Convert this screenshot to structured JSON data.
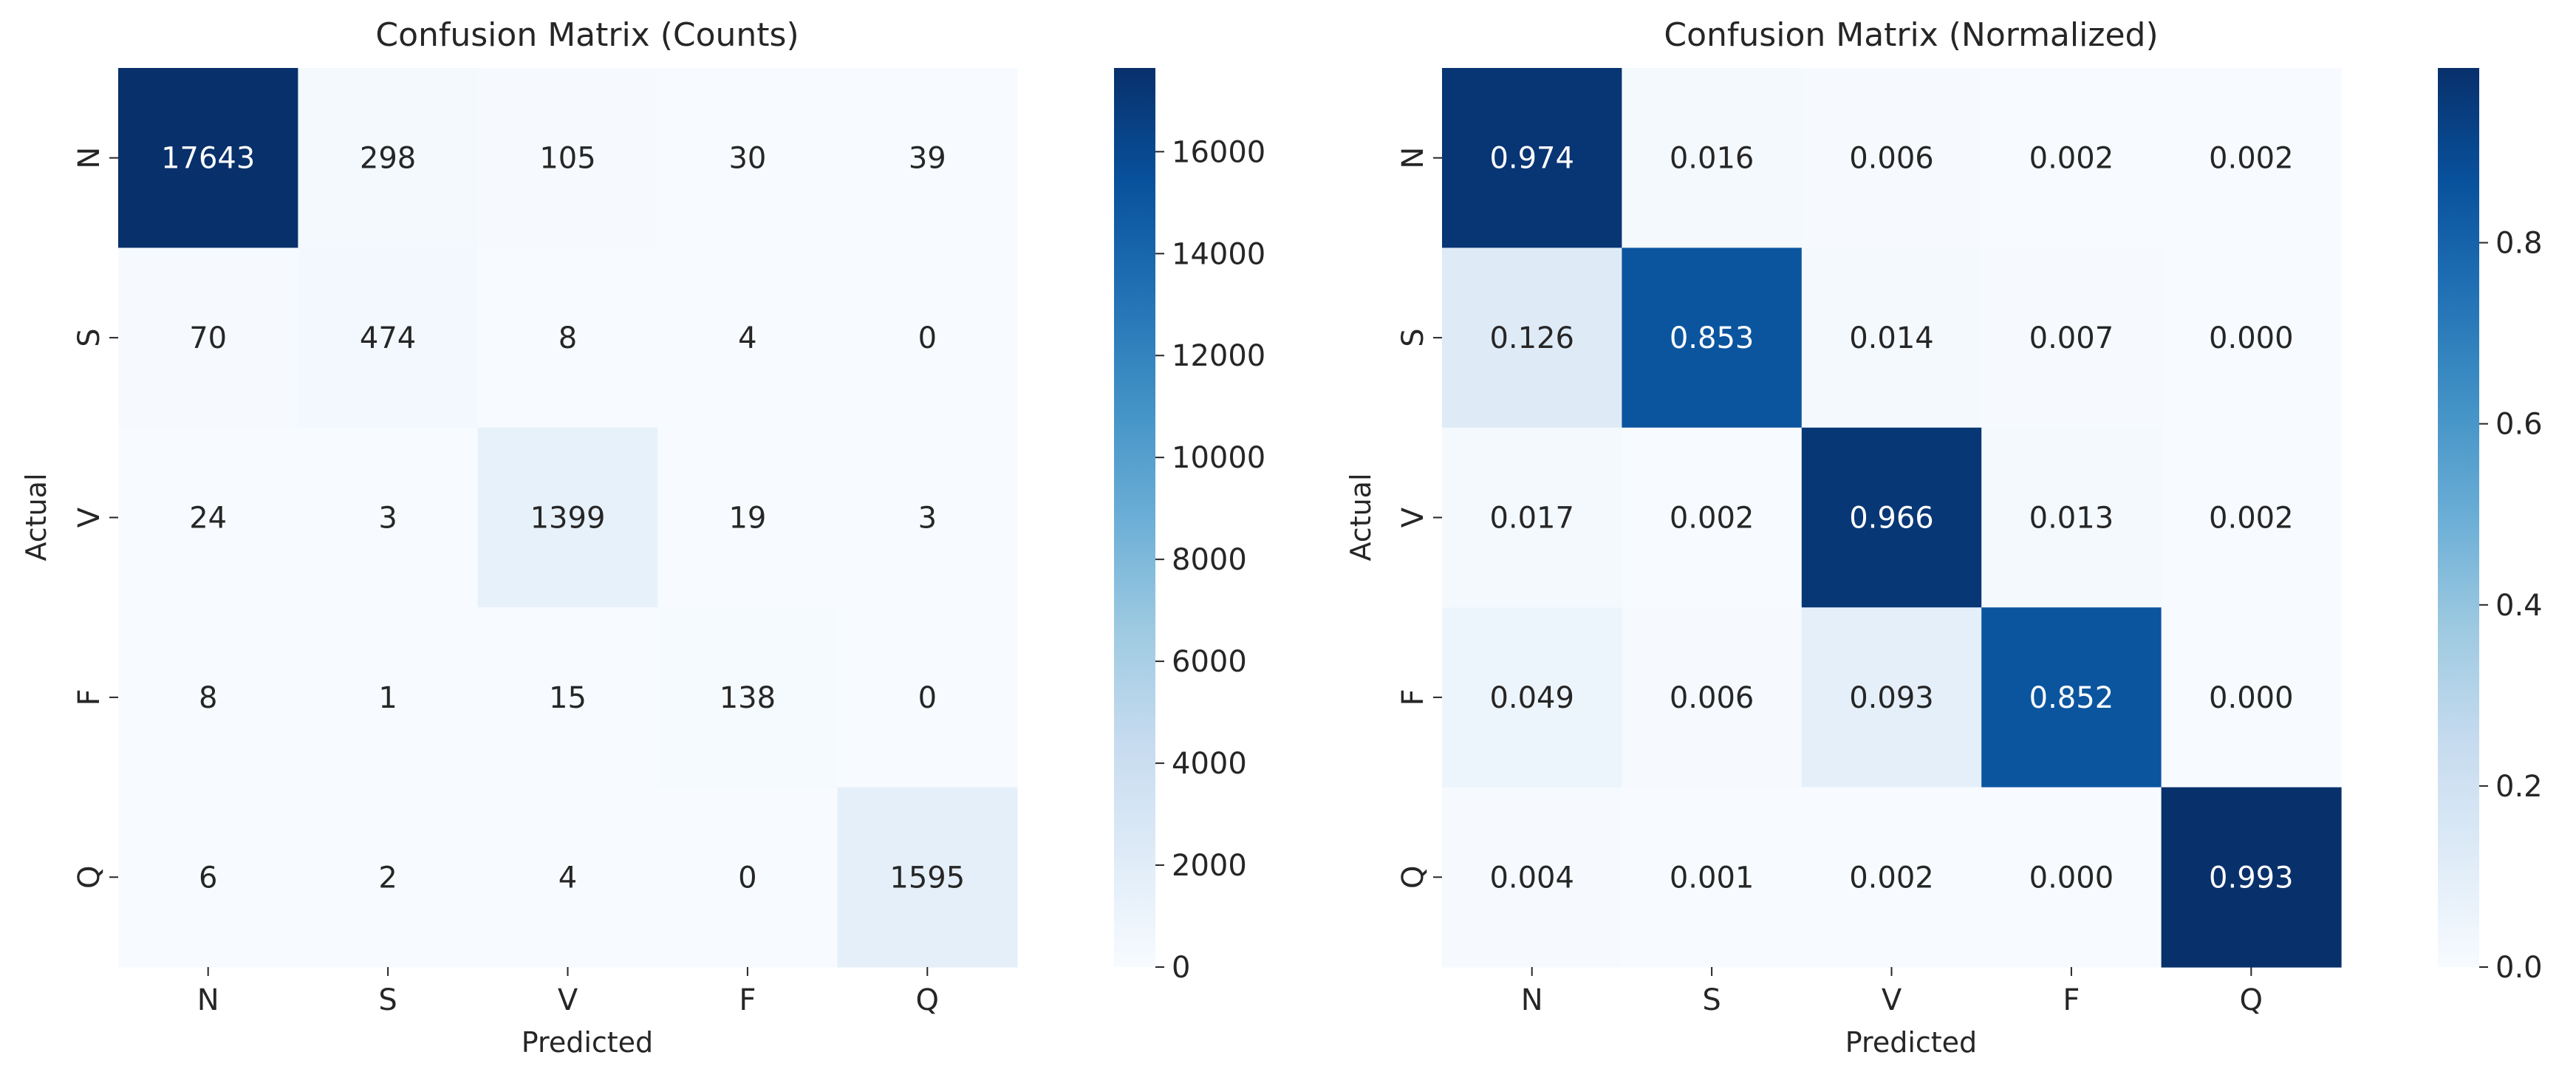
{
  "chart_data": [
    {
      "type": "heatmap",
      "title": "Confusion Matrix (Counts)",
      "xlabel": "Predicted",
      "ylabel": "Actual",
      "x_categories": [
        "N",
        "S",
        "V",
        "F",
        "Q"
      ],
      "y_categories": [
        "N",
        "S",
        "V",
        "F",
        "Q"
      ],
      "values": [
        [
          17643,
          298,
          105,
          30,
          39
        ],
        [
          70,
          474,
          8,
          4,
          0
        ],
        [
          24,
          3,
          1399,
          19,
          3
        ],
        [
          8,
          1,
          15,
          138,
          0
        ],
        [
          6,
          2,
          4,
          0,
          1595
        ]
      ],
      "cell_labels": [
        [
          "17643",
          "298",
          "105",
          "30",
          "39"
        ],
        [
          "70",
          "474",
          "8",
          "4",
          "0"
        ],
        [
          "24",
          "3",
          "1399",
          "19",
          "3"
        ],
        [
          "8",
          "1",
          "15",
          "138",
          "0"
        ],
        [
          "6",
          "2",
          "4",
          "0",
          "1595"
        ]
      ],
      "colorbar": {
        "range": [
          0,
          17643
        ],
        "ticks": [
          0,
          2000,
          4000,
          6000,
          8000,
          10000,
          12000,
          14000,
          16000
        ],
        "tick_labels": [
          "0",
          "2000",
          "4000",
          "6000",
          "8000",
          "10000",
          "12000",
          "14000",
          "16000"
        ]
      },
      "colormap": "Blues",
      "grid": false
    },
    {
      "type": "heatmap",
      "title": "Confusion Matrix (Normalized)",
      "xlabel": "Predicted",
      "ylabel": "Actual",
      "x_categories": [
        "N",
        "S",
        "V",
        "F",
        "Q"
      ],
      "y_categories": [
        "N",
        "S",
        "V",
        "F",
        "Q"
      ],
      "values": [
        [
          0.974,
          0.016,
          0.006,
          0.002,
          0.002
        ],
        [
          0.126,
          0.853,
          0.014,
          0.007,
          0.0
        ],
        [
          0.017,
          0.002,
          0.966,
          0.013,
          0.002
        ],
        [
          0.049,
          0.006,
          0.093,
          0.852,
          0.0
        ],
        [
          0.004,
          0.001,
          0.002,
          0.0,
          0.993
        ]
      ],
      "cell_labels": [
        [
          "0.974",
          "0.016",
          "0.006",
          "0.002",
          "0.002"
        ],
        [
          "0.126",
          "0.853",
          "0.014",
          "0.007",
          "0.000"
        ],
        [
          "0.017",
          "0.002",
          "0.966",
          "0.013",
          "0.002"
        ],
        [
          "0.049",
          "0.006",
          "0.093",
          "0.852",
          "0.000"
        ],
        [
          "0.004",
          "0.001",
          "0.002",
          "0.000",
          "0.993"
        ]
      ],
      "colorbar": {
        "range": [
          0,
          0.993
        ],
        "ticks": [
          0,
          0.2,
          0.4,
          0.6,
          0.8
        ],
        "tick_labels": [
          "0.0",
          "0.2",
          "0.4",
          "0.6",
          "0.8"
        ]
      },
      "colormap": "Blues",
      "grid": false
    }
  ],
  "colors": {
    "text_dark": "#262626",
    "text_light": "#ffffff",
    "axis": "#262626"
  }
}
